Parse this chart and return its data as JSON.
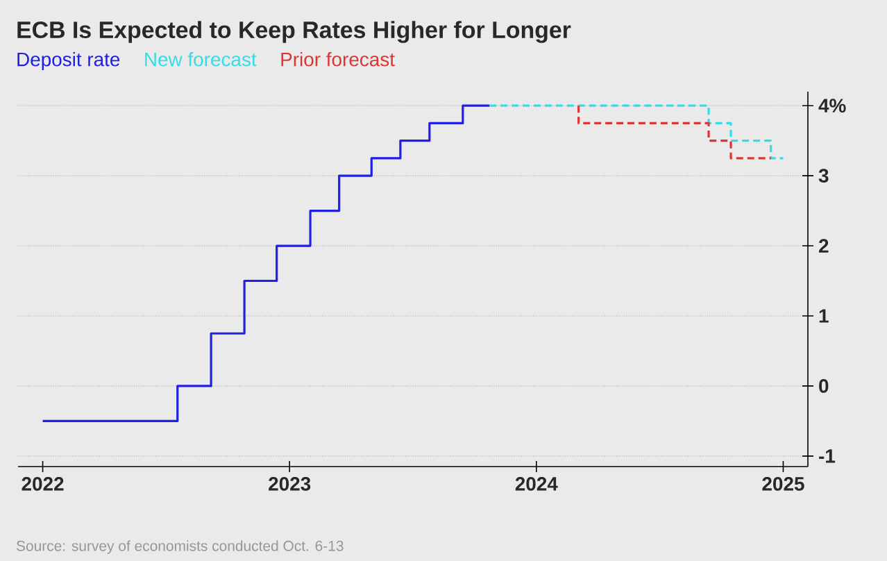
{
  "chart_data": {
    "type": "step",
    "title": "ECB Is Expected to Keep Rates Higher for Longer",
    "series": [
      {
        "name": "Deposit rate",
        "color": "#1f1fe6",
        "line_style": "solid",
        "x": [
          2022.0,
          2022.546,
          2022.682,
          2022.817,
          2022.948,
          2023.084,
          2023.201,
          2023.332,
          2023.449,
          2023.567,
          2023.702,
          2023.81
        ],
        "values": [
          -0.5,
          0,
          0.75,
          1.5,
          2,
          2.5,
          3,
          3.25,
          3.5,
          3.75,
          4,
          4
        ]
      },
      {
        "name": "New forecast",
        "color": "#33dde8",
        "line_style": "dashed",
        "x": [
          2023.81,
          2024.698,
          2024.788,
          2024.95,
          2025.0
        ],
        "values": [
          4,
          3.75,
          3.5,
          3.25,
          3.25
        ]
      },
      {
        "name": "Prior forecast",
        "color": "#e03333",
        "line_style": "dashed",
        "x": [
          2024.171,
          2024.171,
          2024.698,
          2024.788,
          2024.95
        ],
        "values": [
          4,
          3.75,
          3.5,
          3.25,
          3.25
        ]
      }
    ],
    "xlim": [
      2021.9,
      2025.1
    ],
    "xticks": [
      2022,
      2023,
      2024,
      2025
    ],
    "ylim": [
      -1.15,
      4.2
    ],
    "yticks": [
      -1,
      0,
      1,
      2,
      3,
      {
        "value": 4,
        "label": "4%"
      }
    ],
    "grid": "y",
    "legend": "top",
    "annotations": [
      "Source: survey of economists conducted Oct. 6-13"
    ]
  }
}
